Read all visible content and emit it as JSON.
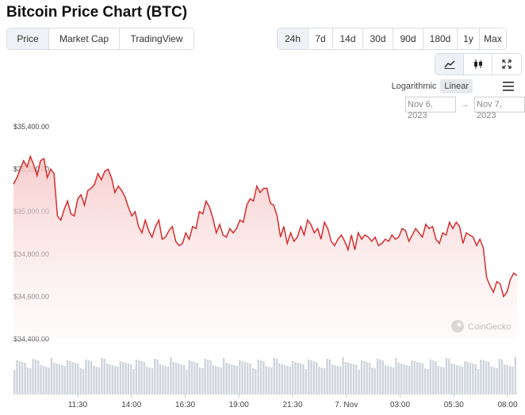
{
  "title": "Bitcoin Price Chart (BTC)",
  "view_tabs": [
    "Price",
    "Market Cap",
    "TradingView"
  ],
  "active_view": "Price",
  "range_tabs": [
    "24h",
    "7d",
    "14d",
    "30d",
    "90d",
    "180d",
    "1y",
    "Max"
  ],
  "active_range": "24h",
  "chart_type_icons": [
    "line-chart-icon",
    "candlestick-icon",
    "fullscreen-icon"
  ],
  "scale": {
    "log_label": "Logarithmic",
    "linear_label": "Linear",
    "active": "Linear"
  },
  "date_range": {
    "from": "Nov 6, 2023",
    "to": "Nov 7, 2023",
    "arrow": "→"
  },
  "watermark": "CoinGecko",
  "colors": {
    "line": "#d62d2d",
    "fill_top": "#f7c9c9",
    "volume": "#cfd3dc",
    "accent_bg": "#eef1f5"
  },
  "chart_data": {
    "type": "area",
    "title": "",
    "xlabel": "",
    "ylabel": "",
    "ylim": [
      34400,
      35400
    ],
    "yticks": [
      34400,
      34600,
      34800,
      35000,
      35200,
      35400
    ],
    "ytick_labels": [
      "$34,400.00",
      "$34,600.00",
      "$34,800.00",
      "$35,000.00",
      "$35,200.00",
      "$35,400.00"
    ],
    "xticks": [
      "11:30",
      "14:00",
      "16:30",
      "19:00",
      "21:30",
      "7. Nov",
      "03:00",
      "05:30",
      "08:00"
    ],
    "grid": false,
    "series": [
      {
        "values": [
          35130,
          35160,
          35200,
          35240,
          35210,
          35260,
          35220,
          35170,
          35240,
          35250,
          35160,
          35200,
          35180,
          34980,
          34960,
          35010,
          35050,
          34990,
          34980,
          35060,
          35080,
          35030,
          35100,
          35110,
          35130,
          35180,
          35150,
          35190,
          35200,
          35160,
          35090,
          35120,
          35100,
          35070,
          35020,
          34980,
          35000,
          34930,
          34900,
          34960,
          34910,
          34880,
          34930,
          34960,
          34870,
          34880,
          34910,
          34930,
          34860,
          34840,
          34850,
          34900,
          34870,
          34930,
          34920,
          35000,
          34990,
          35050,
          35020,
          34970,
          34900,
          34940,
          34890,
          34880,
          34920,
          34900,
          34920,
          34960,
          34950,
          35030,
          35060,
          35050,
          35120,
          35090,
          35110,
          35110,
          35040,
          35030,
          34980,
          34880,
          34930,
          34850,
          34900,
          34860,
          34880,
          34930,
          34890,
          34960,
          34940,
          34900,
          34920,
          34870,
          34950,
          34920,
          34860,
          34840,
          34870,
          34890,
          34860,
          34820,
          34890,
          34820,
          34900,
          34870,
          34890,
          34880,
          34860,
          34880,
          34840,
          34850,
          34870,
          34860,
          34890,
          34870,
          34880,
          34920,
          34910,
          34860,
          34890,
          34920,
          34900,
          34880,
          34940,
          34920,
          34930,
          34870,
          34850,
          34900,
          34890,
          34950,
          34920,
          34950,
          34930,
          34850,
          34900,
          34890,
          34880,
          34840,
          34870,
          34830,
          34690,
          34650,
          34620,
          34670,
          34660,
          34600,
          34620,
          34680,
          34710,
          34700
        ]
      }
    ]
  }
}
